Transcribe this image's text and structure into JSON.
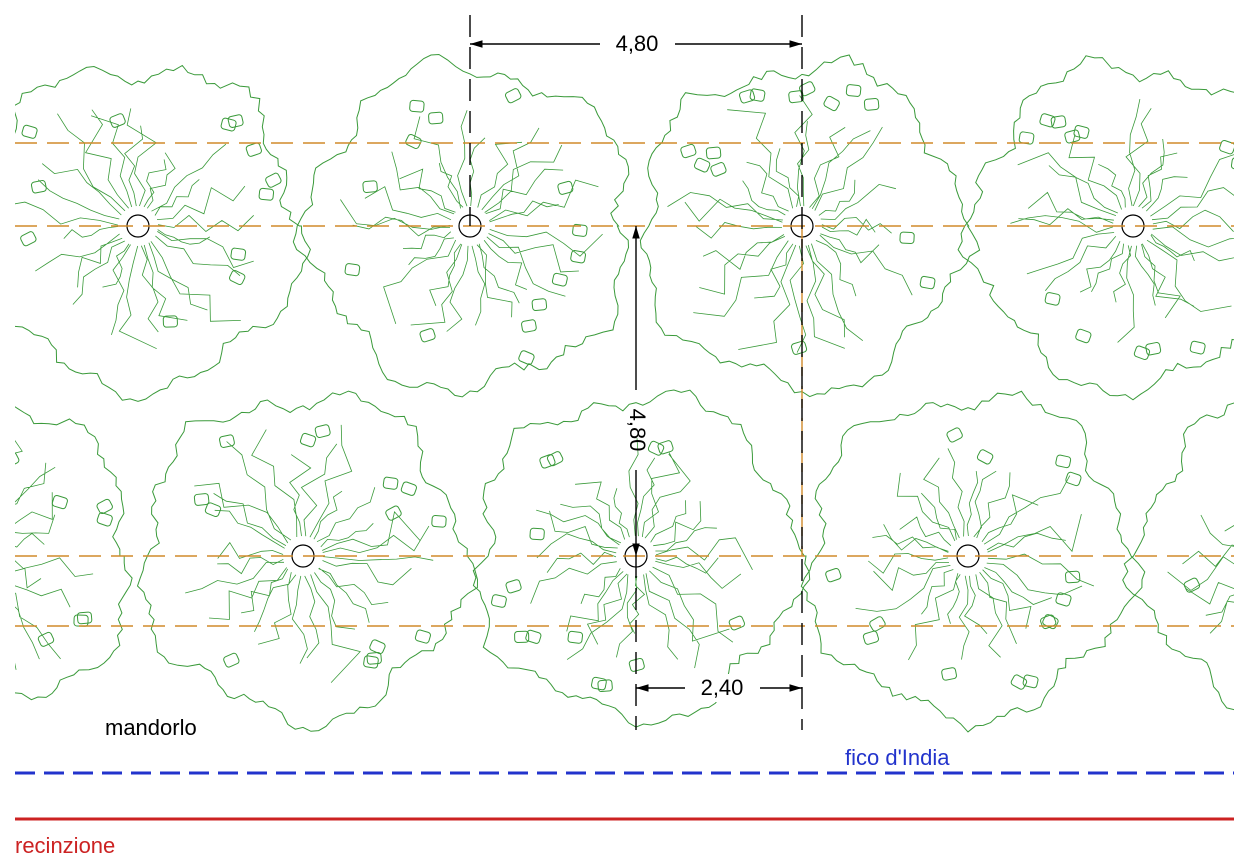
{
  "dimensions": [
    "4,80",
    "4,80",
    "2,40"
  ],
  "labels": {
    "tree": "mandorlo",
    "hedge": "fico d'India",
    "fence": "recinzione"
  }
}
